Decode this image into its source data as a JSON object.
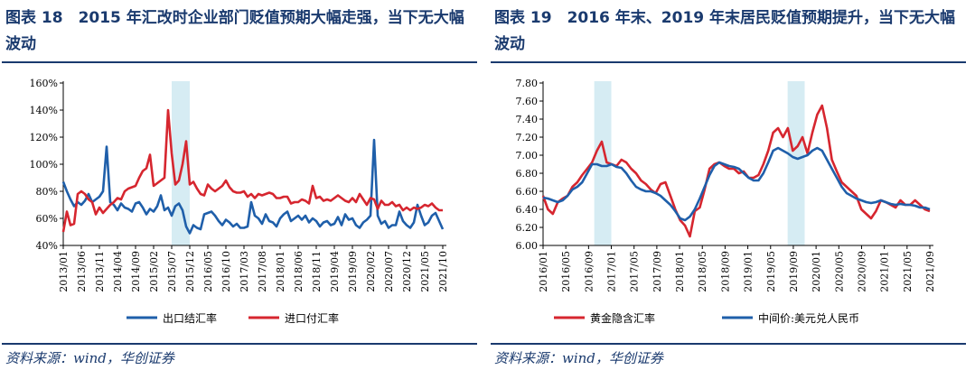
{
  "left": {
    "title": "图表 18　2015 年汇改时企业部门贬值预期大幅走强，当下无大幅波动",
    "source": "资料来源：wind，华创证券"
  },
  "right": {
    "title": "图表 19　2016 年末、2019 年末居民贬值预期提升，当下无大幅波动",
    "source": "资料来源：wind，华创证券"
  },
  "chart_data": [
    {
      "type": "line",
      "title": "",
      "ylim": [
        40,
        160
      ],
      "y_unit": "%",
      "y_ticks": [
        "40%",
        "60%",
        "80%",
        "100%",
        "120%",
        "140%",
        "160%"
      ],
      "x_ticks": [
        "2013/01",
        "2013/06",
        "2013/11",
        "2014/04",
        "2014/09",
        "2015/02",
        "2015/07",
        "2015/12",
        "2016/05",
        "2016/10",
        "2017/03",
        "2017/08",
        "2018/01",
        "2018/06",
        "2018/11",
        "2019/04",
        "2019/09",
        "2020/02",
        "2020/07",
        "2020/12",
        "2021/05",
        "2021/10"
      ],
      "shaded_periods": [
        [
          "2015/07",
          "2015/12"
        ]
      ],
      "grid": false,
      "legend": "bottom",
      "series": [
        {
          "name": "出口结汇率",
          "color": "#1f5faa",
          "values": [
            87,
            80,
            74,
            69,
            72,
            70,
            73,
            78,
            72,
            74,
            76,
            80,
            113,
            72,
            70,
            66,
            71,
            68,
            67,
            65,
            71,
            72,
            68,
            63,
            67,
            65,
            69,
            77,
            66,
            68,
            62,
            69,
            71,
            66,
            54,
            49,
            55,
            53,
            52,
            63,
            64,
            65,
            62,
            58,
            55,
            59,
            57,
            54,
            56,
            53,
            53,
            54,
            72,
            62,
            60,
            56,
            63,
            58,
            57,
            54,
            60,
            63,
            65,
            58,
            60,
            62,
            59,
            62,
            57,
            60,
            58,
            54,
            57,
            58,
            55,
            56,
            61,
            55,
            63,
            59,
            60,
            55,
            53,
            57,
            59,
            62,
            118,
            62,
            56,
            58,
            53,
            55,
            55,
            65,
            58,
            55,
            53,
            57,
            70,
            62,
            55,
            57,
            62,
            64,
            58,
            52
          ]
        },
        {
          "name": "进口付汇率",
          "color": "#d6262f",
          "values": [
            50,
            65,
            55,
            56,
            78,
            80,
            78,
            74,
            72,
            63,
            68,
            64,
            67,
            70,
            72,
            75,
            74,
            80,
            82,
            83,
            84,
            90,
            95,
            97,
            107,
            84,
            86,
            88,
            90,
            140,
            108,
            85,
            88,
            100,
            117,
            85,
            87,
            82,
            78,
            77,
            85,
            82,
            80,
            82,
            84,
            88,
            83,
            80,
            79,
            79,
            80,
            76,
            78,
            75,
            78,
            77,
            78,
            79,
            78,
            75,
            75,
            76,
            76,
            71,
            72,
            72,
            74,
            73,
            71,
            84,
            75,
            76,
            73,
            74,
            73,
            75,
            77,
            75,
            73,
            72,
            75,
            72,
            78,
            74,
            70,
            75,
            74,
            67,
            73,
            70,
            70,
            72,
            69,
            70,
            66,
            68,
            66,
            68,
            67,
            68,
            70,
            69,
            71,
            68,
            66,
            66
          ]
        }
      ]
    },
    {
      "type": "line",
      "title": "",
      "ylim": [
        6.0,
        7.8
      ],
      "y_ticks": [
        "6.00",
        "6.20",
        "6.40",
        "6.60",
        "6.80",
        "7.00",
        "7.20",
        "7.40",
        "7.60",
        "7.80"
      ],
      "x_ticks": [
        "2016/01",
        "2016/05",
        "2016/09",
        "2017/01",
        "2017/05",
        "2017/09",
        "2018/01",
        "2018/05",
        "2018/09",
        "2019/01",
        "2019/05",
        "2019/09",
        "2020/01",
        "2020/05",
        "2020/09",
        "2021/01",
        "2021/05",
        "2021/09"
      ],
      "shaded_periods": [
        [
          "2016/10",
          "2017/01"
        ],
        [
          "2019/08",
          "2019/11"
        ]
      ],
      "grid": false,
      "legend": "bottom",
      "series": [
        {
          "name": "黄金隐含汇率",
          "color": "#d6262f",
          "values": [
            6.55,
            6.4,
            6.35,
            6.48,
            6.52,
            6.55,
            6.65,
            6.7,
            6.78,
            6.85,
            6.92,
            7.05,
            7.15,
            6.92,
            6.9,
            6.88,
            6.95,
            6.92,
            6.85,
            6.8,
            6.72,
            6.68,
            6.62,
            6.58,
            6.68,
            6.7,
            6.55,
            6.4,
            6.28,
            6.22,
            6.1,
            6.38,
            6.42,
            6.62,
            6.85,
            6.9,
            6.92,
            6.88,
            6.85,
            6.85,
            6.8,
            6.82,
            6.75,
            6.75,
            6.78,
            6.9,
            7.05,
            7.25,
            7.3,
            7.2,
            7.3,
            7.05,
            7.1,
            7.2,
            7.02,
            7.25,
            7.45,
            7.55,
            7.3,
            6.95,
            6.82,
            6.7,
            6.65,
            6.6,
            6.55,
            6.4,
            6.35,
            6.3,
            6.38,
            6.5,
            6.48,
            6.45,
            6.42,
            6.5,
            6.45,
            6.45,
            6.5,
            6.45,
            6.4,
            6.38
          ]
        },
        {
          "name": "中间价:美元兑人民币",
          "color": "#1f5faa",
          "values": [
            6.53,
            6.52,
            6.5,
            6.48,
            6.5,
            6.55,
            6.62,
            6.65,
            6.7,
            6.8,
            6.9,
            6.9,
            6.88,
            6.88,
            6.9,
            6.87,
            6.86,
            6.8,
            6.72,
            6.65,
            6.62,
            6.6,
            6.6,
            6.58,
            6.55,
            6.5,
            6.45,
            6.38,
            6.3,
            6.28,
            6.32,
            6.4,
            6.52,
            6.65,
            6.78,
            6.88,
            6.92,
            6.9,
            6.88,
            6.87,
            6.85,
            6.8,
            6.75,
            6.72,
            6.72,
            6.8,
            6.92,
            7.05,
            7.08,
            7.05,
            7.02,
            6.98,
            6.96,
            6.98,
            7.0,
            7.05,
            7.08,
            7.05,
            6.95,
            6.85,
            6.75,
            6.65,
            6.58,
            6.55,
            6.52,
            6.5,
            6.48,
            6.47,
            6.48,
            6.5,
            6.48,
            6.46,
            6.45,
            6.46,
            6.45,
            6.45,
            6.44,
            6.42,
            6.42,
            6.4
          ]
        }
      ]
    }
  ]
}
